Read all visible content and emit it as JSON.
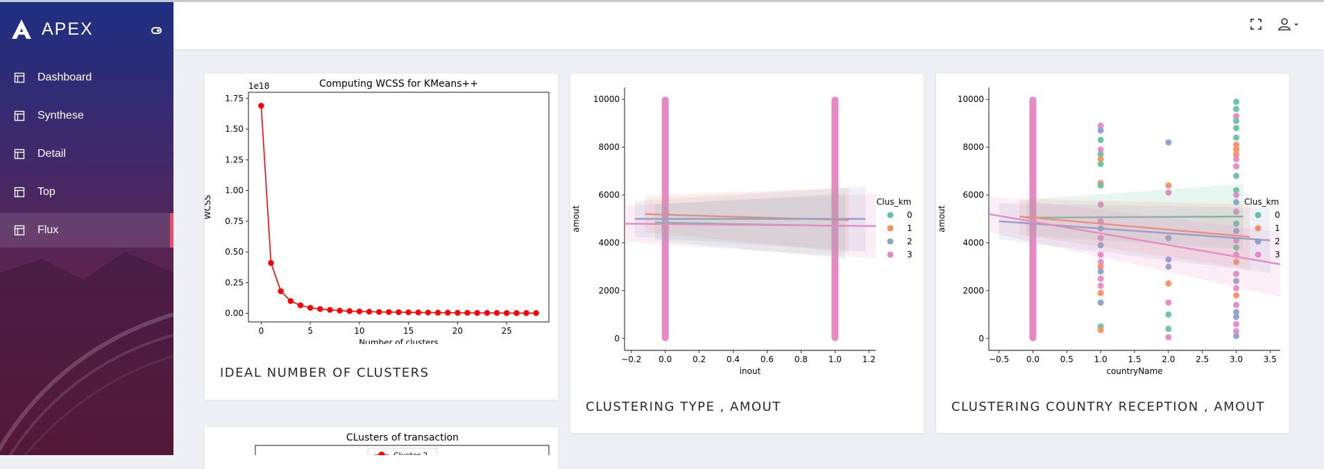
{
  "app": {
    "brand": "APEX"
  },
  "sidebar": {
    "items": [
      {
        "label": "Dashboard",
        "icon": "layout-icon"
      },
      {
        "label": "Synthese",
        "icon": "layout-icon"
      },
      {
        "label": "Detail",
        "icon": "layout-icon"
      },
      {
        "label": "Top",
        "icon": "layout-icon"
      },
      {
        "label": "Flux",
        "icon": "layout-icon",
        "active": true
      }
    ]
  },
  "header": {
    "icons": [
      "fullscreen-icon",
      "user-icon"
    ]
  },
  "cards": {
    "wcss": {
      "title": "IDEAL NUMBER OF CLUSTERS"
    },
    "type": {
      "title": "CLUSTERING TYPE , AMOUT"
    },
    "country": {
      "title": "CLUSTERING COUNTRY RECEPTION , AMOUT"
    }
  },
  "colors": {
    "accent": "#ea4f6a",
    "red": "#ff0000",
    "c0": "#66c2a5",
    "c1": "#fc8d62",
    "c2": "#8da0cb",
    "c3": "#e78ac3"
  },
  "chart_data": [
    {
      "type": "line",
      "title": "Computing WCSS for KMeans++",
      "xlabel": "Number of clusters",
      "ylabel": "WCSS",
      "offset_label": "1e18",
      "xticks": [
        "0",
        "5",
        "10",
        "15",
        "20",
        "25"
      ],
      "yticks": [
        "0.00",
        "0.25",
        "0.50",
        "0.75",
        "1.00",
        "1.25",
        "1.50",
        "1.75"
      ],
      "xlim": [
        -1.3,
        29.3
      ],
      "ylim": [
        -0.07,
        1.8
      ],
      "x": [
        0,
        1,
        2,
        3,
        4,
        5,
        6,
        7,
        8,
        9,
        10,
        11,
        12,
        13,
        14,
        15,
        16,
        17,
        18,
        19,
        20,
        21,
        22,
        23,
        24,
        25,
        26,
        27,
        28
      ],
      "y": [
        1.69,
        0.41,
        0.18,
        0.1,
        0.065,
        0.045,
        0.035,
        0.028,
        0.022,
        0.018,
        0.015,
        0.013,
        0.011,
        0.01,
        0.009,
        0.008,
        0.007,
        0.006,
        0.005,
        0.005,
        0.004,
        0.004,
        0.003,
        0.003,
        0.003,
        0.002,
        0.002,
        0.002,
        0.002
      ]
    },
    {
      "type": "scatter",
      "xlabel": "inout",
      "ylabel": "amout",
      "xticks": [
        "−0.2",
        "0.0",
        "0.2",
        "0.4",
        "0.6",
        "0.8",
        "1.0",
        "1.2"
      ],
      "yticks": [
        "0",
        "2000",
        "4000",
        "6000",
        "8000",
        "10000"
      ],
      "xlim": [
        -0.24,
        1.24
      ],
      "ylim": [
        -500,
        10500
      ],
      "legend": {
        "title": "Clus_km",
        "entries": [
          "0",
          "1",
          "2",
          "3"
        ],
        "position": "right"
      },
      "strips": [
        0,
        1
      ],
      "regressions": [
        {
          "cluster": "1",
          "x": [
            -0.12,
            1.08
          ],
          "y": [
            5200,
            4950
          ]
        },
        {
          "cluster": "2",
          "x": [
            -0.18,
            1.18
          ],
          "y": [
            5000,
            5000
          ]
        },
        {
          "cluster": "0",
          "x": [
            -0.06,
            1.06
          ],
          "y": [
            4850,
            4700
          ]
        },
        {
          "cluster": "3",
          "x": [
            -0.24,
            1.24
          ],
          "y": [
            4800,
            4700
          ]
        }
      ]
    },
    {
      "type": "scatter",
      "xlabel": "countryName",
      "ylabel": "amout",
      "xticks": [
        "−0.5",
        "0.0",
        "0.5",
        "1.0",
        "1.5",
        "2.0",
        "2.5",
        "3.0",
        "3.5"
      ],
      "yticks": [
        "0",
        "2000",
        "4000",
        "6000",
        "8000",
        "10000"
      ],
      "xlim": [
        -0.65,
        3.65
      ],
      "ylim": [
        -500,
        10500
      ],
      "legend": {
        "title": "Clus_km",
        "entries": [
          "0",
          "1",
          "2",
          "3"
        ],
        "position": "right"
      },
      "strips": [
        0
      ],
      "points": [
        [
          1,
          8900,
          "3"
        ],
        [
          1,
          8700,
          "2"
        ],
        [
          1,
          8300,
          "0"
        ],
        [
          1,
          7900,
          "3"
        ],
        [
          1,
          7700,
          "0"
        ],
        [
          1,
          7500,
          "1"
        ],
        [
          1,
          7300,
          "0"
        ],
        [
          1,
          6500,
          "1"
        ],
        [
          1,
          6400,
          "0"
        ],
        [
          1,
          5600,
          "3"
        ],
        [
          1,
          4900,
          "3"
        ],
        [
          1,
          4600,
          "2"
        ],
        [
          1,
          4200,
          "3"
        ],
        [
          1,
          3900,
          "2"
        ],
        [
          1,
          3500,
          "3"
        ],
        [
          1,
          3200,
          "3"
        ],
        [
          1,
          3000,
          "1"
        ],
        [
          1,
          2800,
          "2"
        ],
        [
          1,
          2500,
          "3"
        ],
        [
          1,
          2200,
          "3"
        ],
        [
          1,
          1900,
          "1"
        ],
        [
          1,
          1500,
          "2"
        ],
        [
          1,
          500,
          "0"
        ],
        [
          1,
          350,
          "1"
        ],
        [
          2,
          8200,
          "2"
        ],
        [
          2,
          6400,
          "1"
        ],
        [
          2,
          6100,
          "3"
        ],
        [
          2,
          4200,
          "2"
        ],
        [
          2,
          3300,
          "2"
        ],
        [
          2,
          3000,
          "2"
        ],
        [
          2,
          2300,
          "1"
        ],
        [
          2,
          1500,
          "3"
        ],
        [
          2,
          1000,
          "0"
        ],
        [
          2,
          400,
          "0"
        ],
        [
          2,
          50,
          "3"
        ],
        [
          3,
          9900,
          "0"
        ],
        [
          3,
          9600,
          "0"
        ],
        [
          3,
          9300,
          "3"
        ],
        [
          3,
          9100,
          "0"
        ],
        [
          3,
          8800,
          "0"
        ],
        [
          3,
          8400,
          "0"
        ],
        [
          3,
          8100,
          "1"
        ],
        [
          3,
          7900,
          "1"
        ],
        [
          3,
          7700,
          "1"
        ],
        [
          3,
          7500,
          "3"
        ],
        [
          3,
          7200,
          "3"
        ],
        [
          3,
          6800,
          "0"
        ],
        [
          3,
          6200,
          "0"
        ],
        [
          3,
          6000,
          "3"
        ],
        [
          3,
          5700,
          "2"
        ],
        [
          3,
          5300,
          "3"
        ],
        [
          3,
          4800,
          "0"
        ],
        [
          3,
          4500,
          "2"
        ],
        [
          3,
          4100,
          "3"
        ],
        [
          3,
          3800,
          "0"
        ],
        [
          3,
          3500,
          "3"
        ],
        [
          3,
          3200,
          "1"
        ],
        [
          3,
          2700,
          "3"
        ],
        [
          3,
          2400,
          "2"
        ],
        [
          3,
          2100,
          "3"
        ],
        [
          3,
          1800,
          "1"
        ],
        [
          3,
          1400,
          "3"
        ],
        [
          3,
          1100,
          "2"
        ],
        [
          3,
          900,
          "2"
        ],
        [
          3,
          600,
          "3"
        ],
        [
          3,
          300,
          "3"
        ],
        [
          3,
          100,
          "2"
        ]
      ],
      "regressions": [
        {
          "cluster": "0",
          "x": [
            -0.1,
            3.1
          ],
          "y": [
            5050,
            5100
          ]
        },
        {
          "cluster": "1",
          "x": [
            -0.2,
            3.2
          ],
          "y": [
            5100,
            4250
          ]
        },
        {
          "cluster": "2",
          "x": [
            -0.5,
            3.5
          ],
          "y": [
            4900,
            4100
          ]
        },
        {
          "cluster": "3",
          "x": [
            -0.65,
            3.65
          ],
          "y": [
            5200,
            3100
          ]
        }
      ]
    },
    {
      "type": "scatter",
      "title": "CLusters of transaction",
      "legend": {
        "entries": [
          "Cluster 2"
        ],
        "position": "top"
      }
    }
  ]
}
